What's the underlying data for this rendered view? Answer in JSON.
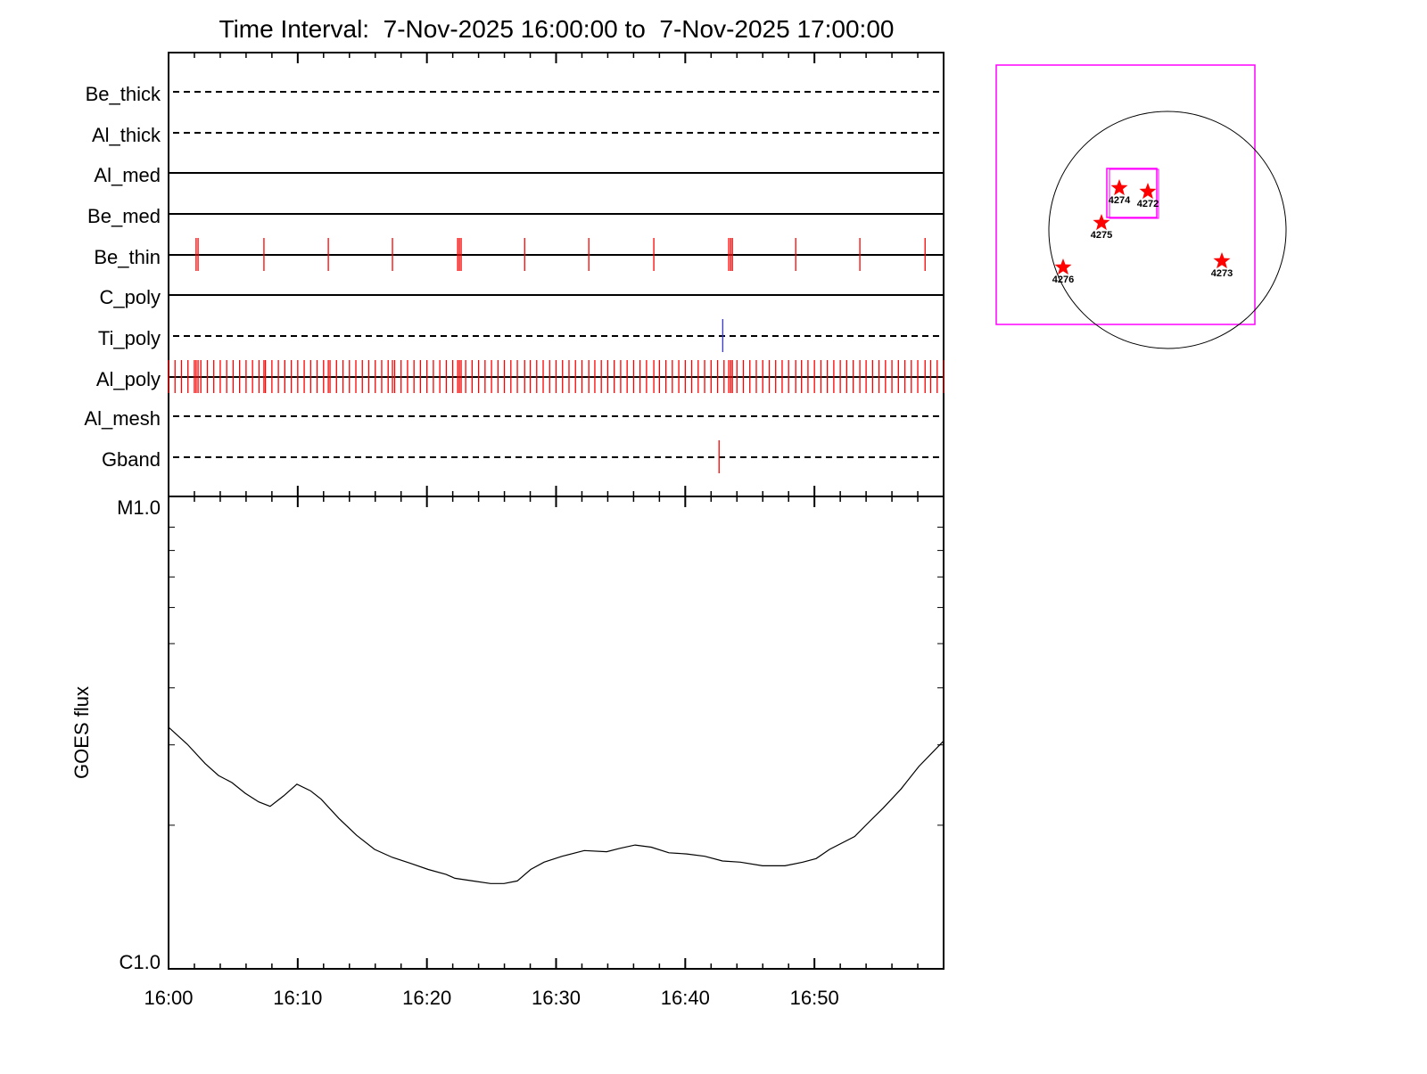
{
  "chart_data": [
    {
      "type": "timeline",
      "title": "Time Interval:  7-Nov-2025 16:00:00 to  7-Nov-2025 17:00:00",
      "xlim": [
        "16:00:00",
        "17:00:00"
      ],
      "rows": [
        {
          "name": "Be_thick",
          "line": "dashed",
          "color": "#ff0000",
          "times": []
        },
        {
          "name": "Al_thick",
          "line": "dashed",
          "color": "#ff0000",
          "times": []
        },
        {
          "name": "Al_med",
          "line": "solid",
          "color": "#ff0000",
          "times": []
        },
        {
          "name": "Be_med",
          "line": "solid",
          "color": "#ff0000",
          "times": []
        },
        {
          "name": "Be_thin",
          "line": "solid",
          "color": "#ff0000",
          "times": [
            "16:02:08",
            "16:02:17",
            "16:07:23",
            "16:12:22",
            "16:17:20",
            "16:22:23",
            "16:22:31",
            "16:22:39",
            "16:27:34",
            "16:32:32",
            "16:37:34",
            "16:43:22",
            "16:43:31",
            "16:43:39",
            "16:48:33",
            "16:53:31",
            "16:58:34"
          ]
        },
        {
          "name": "C_poly",
          "line": "solid",
          "color": "#ff0000",
          "times": []
        },
        {
          "name": "Ti_poly",
          "line": "dashed",
          "color": "#3333ff",
          "times": [
            "16:42:54"
          ]
        },
        {
          "name": "Al_poly",
          "line": "solid",
          "color": "#ff0000",
          "times": [
            "16:00:00",
            "16:00:30",
            "16:01:00",
            "16:01:30",
            "16:02:00",
            "16:02:08",
            "16:02:17",
            "16:02:30",
            "16:03:00",
            "16:03:30",
            "16:04:00",
            "16:04:30",
            "16:05:00",
            "16:05:30",
            "16:06:00",
            "16:06:30",
            "16:07:00",
            "16:07:23",
            "16:07:30",
            "16:08:00",
            "16:08:30",
            "16:09:00",
            "16:09:30",
            "16:10:00",
            "16:10:30",
            "16:11:00",
            "16:11:30",
            "16:12:00",
            "16:12:22",
            "16:12:30",
            "16:13:00",
            "16:13:30",
            "16:14:00",
            "16:14:30",
            "16:15:00",
            "16:15:30",
            "16:16:00",
            "16:16:30",
            "16:17:00",
            "16:17:20",
            "16:17:30",
            "16:18:00",
            "16:18:30",
            "16:19:00",
            "16:19:30",
            "16:20:00",
            "16:20:30",
            "16:21:00",
            "16:21:30",
            "16:22:00",
            "16:22:23",
            "16:22:31",
            "16:22:39",
            "16:23:00",
            "16:23:30",
            "16:24:00",
            "16:24:30",
            "16:25:00",
            "16:25:30",
            "16:26:00",
            "16:26:30",
            "16:27:00",
            "16:27:34",
            "16:28:00",
            "16:28:30",
            "16:29:00",
            "16:29:30",
            "16:30:00",
            "16:30:30",
            "16:31:00",
            "16:31:30",
            "16:32:00",
            "16:32:32",
            "16:33:00",
            "16:33:30",
            "16:34:00",
            "16:34:30",
            "16:35:00",
            "16:35:30",
            "16:36:00",
            "16:36:30",
            "16:37:00",
            "16:37:34",
            "16:38:00",
            "16:38:30",
            "16:39:00",
            "16:39:30",
            "16:40:00",
            "16:40:30",
            "16:41:00",
            "16:41:30",
            "16:42:00",
            "16:42:30",
            "16:43:00",
            "16:43:22",
            "16:43:31",
            "16:43:39",
            "16:44:00",
            "16:44:30",
            "16:45:00",
            "16:45:30",
            "16:46:00",
            "16:46:30",
            "16:47:00",
            "16:47:30",
            "16:48:00",
            "16:48:33",
            "16:49:00",
            "16:49:30",
            "16:50:00",
            "16:50:30",
            "16:51:00",
            "16:51:30",
            "16:52:00",
            "16:52:30",
            "16:53:00",
            "16:53:31",
            "16:54:00",
            "16:54:30",
            "16:55:00",
            "16:55:30",
            "16:56:00",
            "16:56:30",
            "16:57:00",
            "16:57:30",
            "16:58:00",
            "16:58:34",
            "16:59:00",
            "16:59:30",
            "17:00:00"
          ]
        },
        {
          "name": "Al_mesh",
          "line": "dashed",
          "color": "#ff0000",
          "times": []
        },
        {
          "name": "Gband",
          "line": "dashed",
          "color": "#ff0000",
          "times": [
            "16:42:37"
          ]
        }
      ]
    },
    {
      "type": "line",
      "ylabel": "GOES flux",
      "yscale": "log",
      "ylim": [
        1e-06,
        1e-05
      ],
      "ytick_labels": [
        "C1.0",
        "M1.0"
      ],
      "xlim": [
        "16:00:00",
        "17:00:00"
      ],
      "xtick_labels": [
        "16:00",
        "16:10",
        "16:20",
        "16:30",
        "16:40",
        "16:50"
      ],
      "series": [
        {
          "color": "#000000",
          "x": [
            "16:00:00",
            "16:01:27",
            "16:02:50",
            "16:03:52",
            "16:04:54",
            "16:05:56",
            "16:06:59",
            "16:07:52",
            "16:08:55",
            "16:09:56",
            "16:10:59",
            "16:11:49",
            "16:13:11",
            "16:14:34",
            "16:15:57",
            "16:17:20",
            "16:18:43",
            "16:20:06",
            "16:21:29",
            "16:22:10",
            "16:23:33",
            "16:24:56",
            "16:25:58",
            "16:27:00",
            "16:28:02",
            "16:29:04",
            "16:30:28",
            "16:32:11",
            "16:33:55",
            "16:34:56",
            "16:36:07",
            "16:37:22",
            "16:38:44",
            "16:40:07",
            "16:41:30",
            "16:42:53",
            "16:44:16",
            "16:45:59",
            "16:47:43",
            "16:49:06",
            "16:50:08",
            "16:51:10",
            "16:53:07",
            "16:54:17",
            "16:55:19",
            "16:56:42",
            "16:58:05",
            "17:00:00"
          ],
          "y": [
            3.28e-06,
            3.01e-06,
            2.73e-06,
            2.57e-06,
            2.48e-06,
            2.35e-06,
            2.25e-06,
            2.2e-06,
            2.32e-06,
            2.46e-06,
            2.38e-06,
            2.28e-06,
            2.07e-06,
            1.9e-06,
            1.77e-06,
            1.7e-06,
            1.65e-06,
            1.6e-06,
            1.56e-06,
            1.53e-06,
            1.51e-06,
            1.49e-06,
            1.49e-06,
            1.51e-06,
            1.6e-06,
            1.66e-06,
            1.71e-06,
            1.76e-06,
            1.75e-06,
            1.78e-06,
            1.81e-06,
            1.79e-06,
            1.74e-06,
            1.73e-06,
            1.71e-06,
            1.67e-06,
            1.66e-06,
            1.63e-06,
            1.63e-06,
            1.66e-06,
            1.69e-06,
            1.77e-06,
            1.89e-06,
            2.04e-06,
            2.18e-06,
            2.4e-06,
            2.69e-06,
            3.06e-06
          ]
        }
      ]
    },
    {
      "type": "scatter",
      "colors": {
        "fov": "#ff00ff",
        "limb": "#000000",
        "marker": "#ff0000"
      },
      "active_regions": [
        {
          "label": "4274"
        },
        {
          "label": "4272"
        },
        {
          "label": "4275"
        },
        {
          "label": "4276"
        },
        {
          "label": "4273"
        }
      ]
    }
  ]
}
